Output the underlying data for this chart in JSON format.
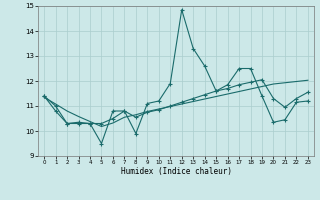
{
  "xlabel": "Humidex (Indice chaleur)",
  "ylabel": "",
  "xlim": [
    -0.5,
    23.5
  ],
  "ylim": [
    9,
    15
  ],
  "yticks": [
    9,
    10,
    11,
    12,
    13,
    14,
    15
  ],
  "xticks": [
    0,
    1,
    2,
    3,
    4,
    5,
    6,
    7,
    8,
    9,
    10,
    11,
    12,
    13,
    14,
    15,
    16,
    17,
    18,
    19,
    20,
    21,
    22,
    23
  ],
  "bg_color": "#cce8e8",
  "line_color": "#1a6b6b",
  "grid_color": "#aacece",
  "series1_x": [
    0,
    1,
    2,
    3,
    4,
    5,
    6,
    7,
    8,
    9,
    10,
    11,
    12,
    13,
    14,
    15,
    16,
    17,
    18,
    19,
    20,
    21,
    22,
    23
  ],
  "series1_y": [
    11.4,
    11.0,
    10.3,
    10.3,
    10.3,
    9.5,
    10.8,
    10.8,
    9.9,
    11.1,
    11.2,
    11.9,
    14.85,
    13.3,
    12.6,
    11.6,
    11.85,
    12.5,
    12.5,
    11.4,
    10.35,
    10.45,
    11.15,
    11.2
  ],
  "series2_x": [
    0,
    1,
    2,
    3,
    4,
    5,
    6,
    7,
    8,
    9,
    10,
    11,
    12,
    13,
    14,
    15,
    16,
    17,
    18,
    19,
    20,
    21,
    22,
    23
  ],
  "series2_y": [
    11.4,
    10.8,
    10.3,
    10.35,
    10.3,
    10.3,
    10.5,
    10.8,
    10.55,
    10.75,
    10.85,
    11.0,
    11.15,
    11.3,
    11.45,
    11.6,
    11.7,
    11.85,
    11.95,
    12.05,
    11.3,
    10.95,
    11.3,
    11.55
  ],
  "series3_x": [
    0,
    1,
    2,
    3,
    4,
    5,
    6,
    7,
    8,
    9,
    10,
    11,
    12,
    13,
    14,
    15,
    16,
    17,
    18,
    19,
    20,
    21,
    22,
    23
  ],
  "series3_y": [
    11.35,
    11.08,
    10.8,
    10.58,
    10.38,
    10.18,
    10.32,
    10.55,
    10.65,
    10.78,
    10.88,
    10.98,
    11.08,
    11.18,
    11.28,
    11.38,
    11.48,
    11.58,
    11.68,
    11.78,
    11.88,
    11.93,
    11.98,
    12.03
  ]
}
